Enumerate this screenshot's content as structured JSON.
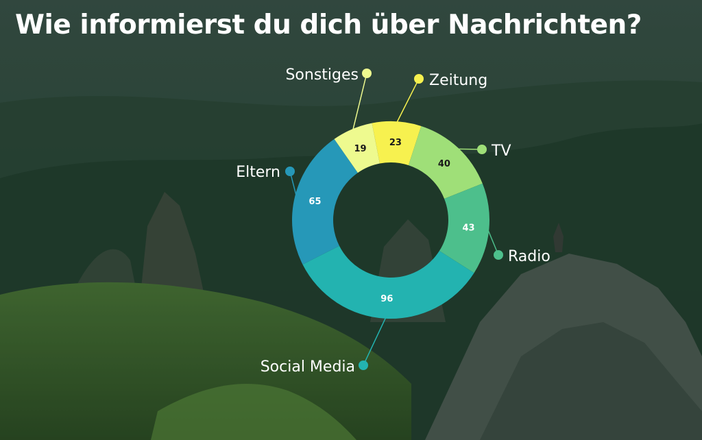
{
  "title": "Wie informierst du dich über Nachrichten?",
  "chart_data": {
    "type": "pie",
    "title": "Wie informierst du dich über Nachrichten?",
    "categories": [
      "Zeitung",
      "TV",
      "Radio",
      "Social Media",
      "Eltern",
      "Sonstiges"
    ],
    "values": [
      23,
      40,
      43,
      96,
      65,
      19
    ],
    "colors": [
      "#f7f14f",
      "#9fdf78",
      "#4dbf8c",
      "#23b3b0",
      "#2698b8",
      "#eefa8f"
    ],
    "value_label_colors": [
      "#1a1a1a",
      "#1a1a1a",
      "#ffffff",
      "#ffffff",
      "#ffffff",
      "#1a1a1a"
    ],
    "style": "donut",
    "legend": "none"
  }
}
